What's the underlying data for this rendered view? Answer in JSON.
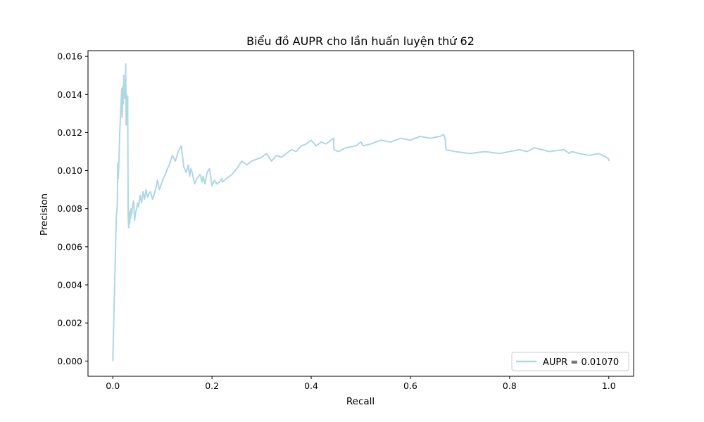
{
  "chart_data": {
    "type": "line",
    "title": "Biểu đồ AUPR cho lần huấn luyện thứ 62",
    "xlabel": "Recall",
    "ylabel": "Precision",
    "xlim": [
      -0.05,
      1.05
    ],
    "ylim": [
      -0.0008,
      0.0163
    ],
    "xticks": [
      0.0,
      0.2,
      0.4,
      0.6,
      0.8,
      1.0
    ],
    "xtick_labels": [
      "0.0",
      "0.2",
      "0.4",
      "0.6",
      "0.8",
      "1.0"
    ],
    "yticks": [
      0.0,
      0.002,
      0.004,
      0.006,
      0.008,
      0.01,
      0.012,
      0.014,
      0.016
    ],
    "ytick_labels": [
      "0.000",
      "0.002",
      "0.004",
      "0.006",
      "0.008",
      "0.010",
      "0.012",
      "0.014",
      "0.016"
    ],
    "grid": false,
    "legend_position": "lower-right",
    "color": "#add8e6",
    "series": [
      {
        "name": "AUPR = 0.01070",
        "x": [
          0.0,
          0.007,
          0.009,
          0.01,
          0.011,
          0.012,
          0.014,
          0.016,
          0.018,
          0.019,
          0.02,
          0.021,
          0.022,
          0.023,
          0.024,
          0.025,
          0.026,
          0.027,
          0.028,
          0.029,
          0.03,
          0.031,
          0.032,
          0.033,
          0.034,
          0.035,
          0.036,
          0.037,
          0.038,
          0.04,
          0.042,
          0.044,
          0.046,
          0.048,
          0.05,
          0.052,
          0.055,
          0.058,
          0.061,
          0.064,
          0.067,
          0.07,
          0.073,
          0.076,
          0.08,
          0.083,
          0.087,
          0.09,
          0.094,
          0.098,
          0.102,
          0.106,
          0.11,
          0.114,
          0.12,
          0.126,
          0.132,
          0.138,
          0.143,
          0.148,
          0.152,
          0.155,
          0.157,
          0.16,
          0.165,
          0.17,
          0.176,
          0.18,
          0.182,
          0.186,
          0.19,
          0.195,
          0.2,
          0.205,
          0.21,
          0.215,
          0.22,
          0.221,
          0.23,
          0.24,
          0.25,
          0.26,
          0.27,
          0.28,
          0.29,
          0.3,
          0.31,
          0.32,
          0.33,
          0.34,
          0.35,
          0.36,
          0.37,
          0.38,
          0.39,
          0.4,
          0.41,
          0.42,
          0.43,
          0.44,
          0.445,
          0.446,
          0.455,
          0.47,
          0.49,
          0.5,
          0.505,
          0.52,
          0.54,
          0.56,
          0.58,
          0.6,
          0.62,
          0.64,
          0.66,
          0.667,
          0.67,
          0.672,
          0.69,
          0.72,
          0.75,
          0.78,
          0.8,
          0.82,
          0.835,
          0.85,
          0.88,
          0.91,
          0.92,
          0.925,
          0.94,
          0.96,
          0.98,
          0.995,
          1.0,
          1.0
        ],
        "y": [
          0.0,
          0.0075,
          0.0082,
          0.0104,
          0.0096,
          0.0102,
          0.012,
          0.0132,
          0.0143,
          0.0128,
          0.0144,
          0.0135,
          0.015,
          0.0138,
          0.0145,
          0.0138,
          0.0156,
          0.0124,
          0.014,
          0.0128,
          0.0139,
          0.0076,
          0.007,
          0.0078,
          0.0072,
          0.0079,
          0.0075,
          0.008,
          0.0077,
          0.0082,
          0.0084,
          0.0074,
          0.0078,
          0.008,
          0.0083,
          0.0081,
          0.0087,
          0.0083,
          0.0089,
          0.0085,
          0.009,
          0.0086,
          0.0088,
          0.0089,
          0.0085,
          0.0087,
          0.0091,
          0.0095,
          0.009,
          0.0093,
          0.0096,
          0.0098,
          0.0101,
          0.0103,
          0.0108,
          0.0105,
          0.011,
          0.0113,
          0.0102,
          0.0099,
          0.0103,
          0.0097,
          0.0101,
          0.0099,
          0.0093,
          0.0096,
          0.0098,
          0.0094,
          0.0097,
          0.0093,
          0.0099,
          0.0101,
          0.0092,
          0.0095,
          0.0093,
          0.0094,
          0.0096,
          0.0094,
          0.0096,
          0.0098,
          0.0101,
          0.0105,
          0.0103,
          0.0105,
          0.0106,
          0.0107,
          0.0109,
          0.0105,
          0.0108,
          0.0107,
          0.0109,
          0.0111,
          0.011,
          0.0113,
          0.0114,
          0.0116,
          0.0113,
          0.0115,
          0.0114,
          0.0116,
          0.0117,
          0.0111,
          0.011,
          0.0112,
          0.0113,
          0.0115,
          0.0113,
          0.0114,
          0.0116,
          0.0115,
          0.0117,
          0.0116,
          0.0118,
          0.0117,
          0.0118,
          0.0119,
          0.0117,
          0.0111,
          0.011,
          0.0109,
          0.011,
          0.0109,
          0.011,
          0.0111,
          0.011,
          0.0112,
          0.011,
          0.0111,
          0.0109,
          0.011,
          0.0109,
          0.0108,
          0.0109,
          0.0107,
          0.0106,
          0.0105
        ]
      }
    ]
  }
}
